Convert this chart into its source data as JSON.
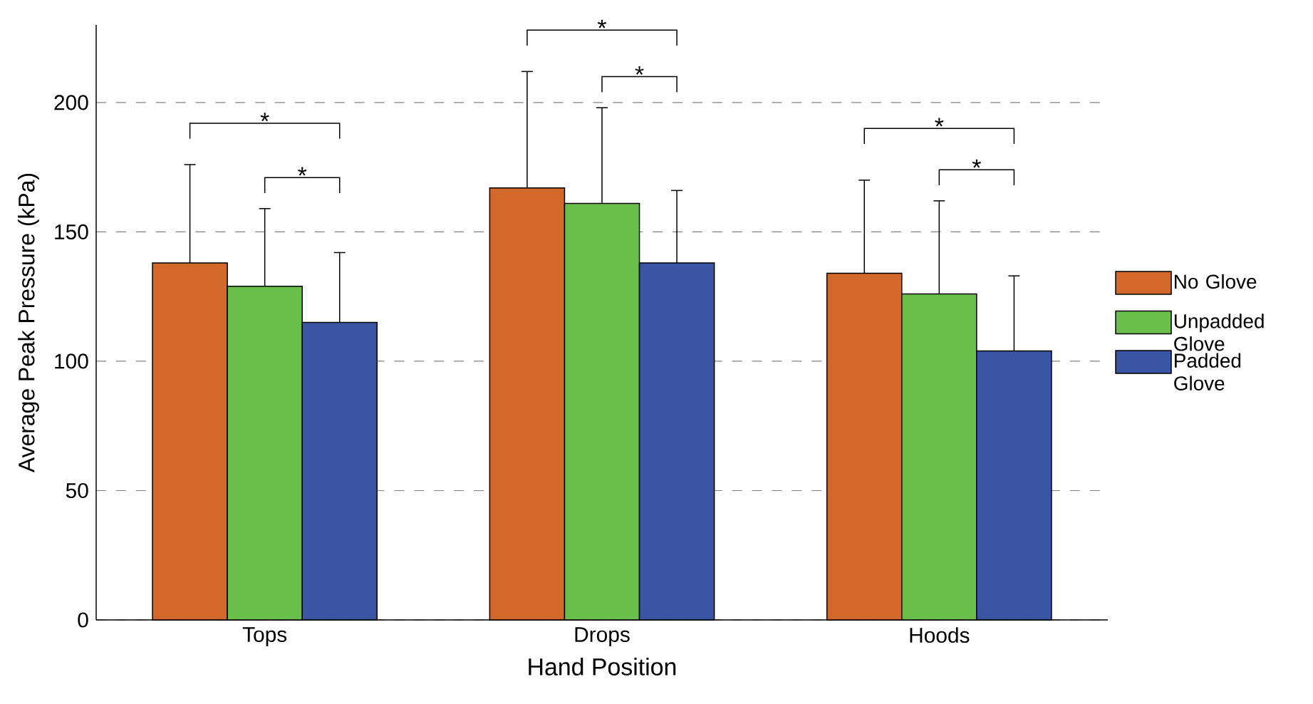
{
  "chart_data": {
    "type": "bar",
    "xlabel": "Hand Position",
    "ylabel": "Average Peak Pressure (kPa)",
    "categories": [
      "Tops",
      "Drops",
      "Hoods"
    ],
    "series": [
      {
        "name": "No Glove",
        "color": "#d2692a",
        "values": [
          138,
          167,
          134
        ],
        "errors": [
          [
            138,
            176
          ],
          [
            167,
            212
          ],
          [
            134,
            170
          ]
        ]
      },
      {
        "name": "Unpadded Glove",
        "color": "#6abf4b",
        "values": [
          129,
          161,
          126
        ],
        "errors": [
          [
            129,
            159
          ],
          [
            161,
            198
          ],
          [
            126,
            162
          ]
        ]
      },
      {
        "name": "Padded Glove",
        "color": "#3a55a4",
        "values": [
          115,
          138,
          104
        ],
        "errors": [
          [
            115,
            142
          ],
          [
            138,
            166
          ],
          [
            104,
            133
          ]
        ]
      }
    ],
    "ylim": [
      0,
      230
    ],
    "yticks": [
      0,
      50,
      100,
      150,
      200
    ],
    "grid": "y",
    "legend": "right",
    "annotations": [
      "*",
      "*",
      "*",
      "*",
      "*",
      "*"
    ]
  }
}
